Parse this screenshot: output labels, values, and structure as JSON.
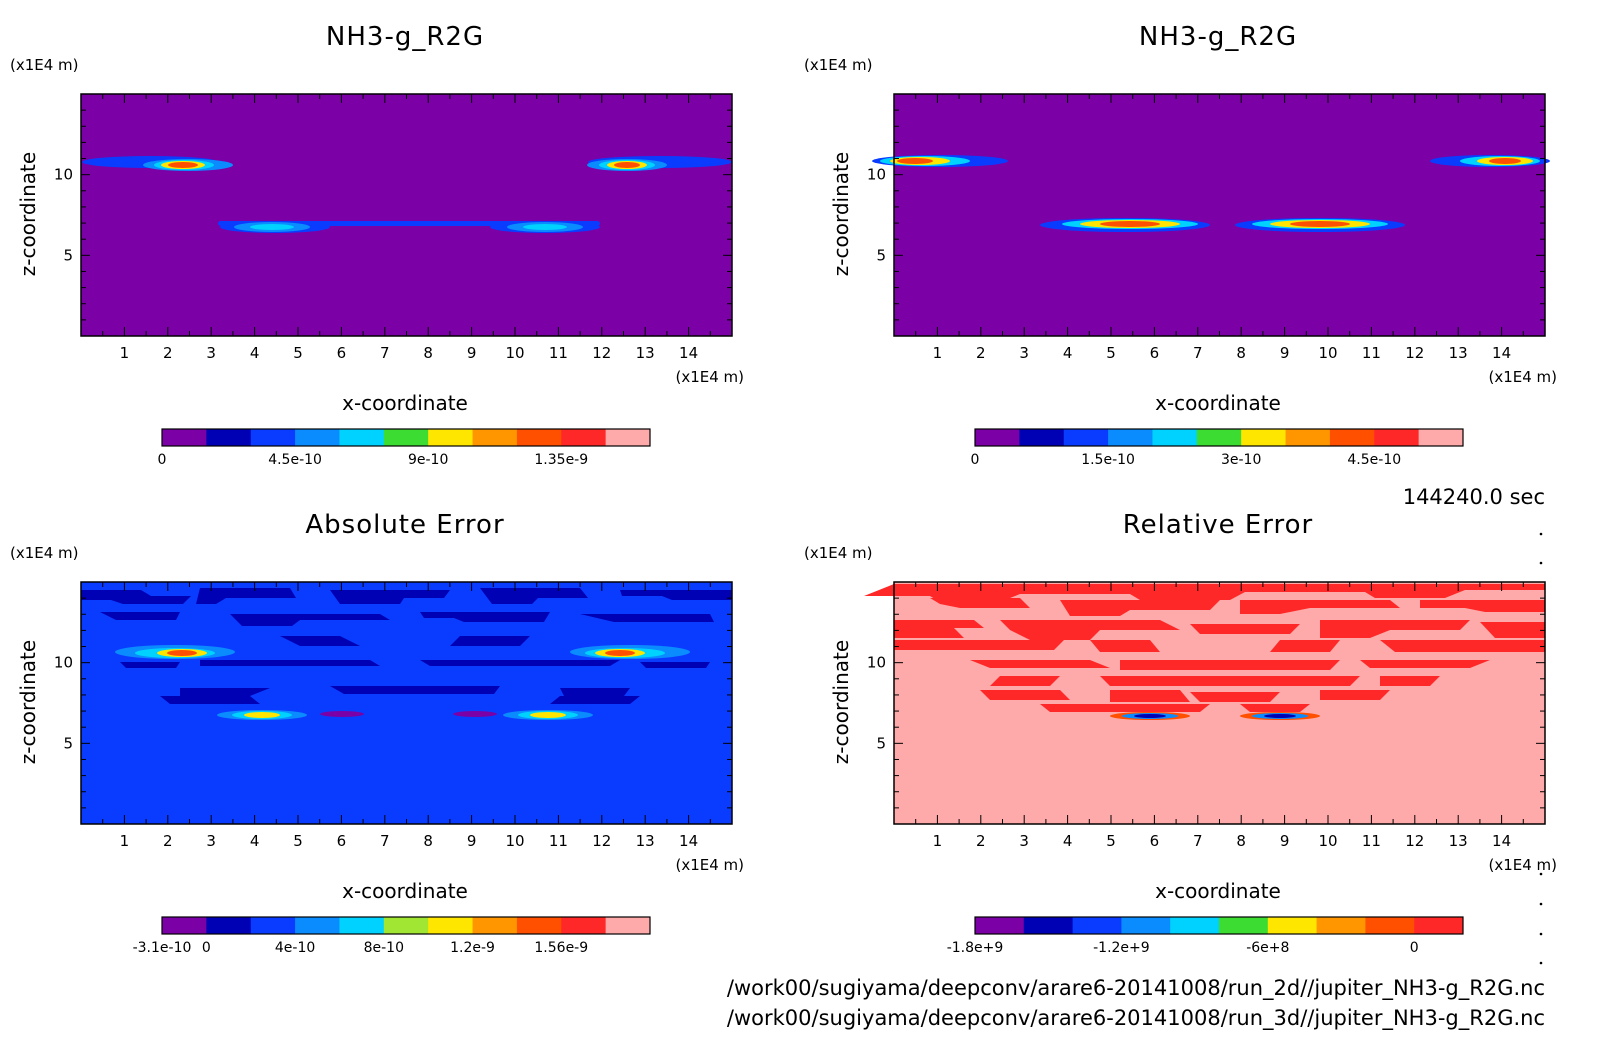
{
  "colors": {
    "purple": "#7b00a6",
    "navy": "#0000b4",
    "blue": "#0a3cff",
    "lightblue": "#0a8cff",
    "cyan": "#00d2ff",
    "green": "#3cdc32",
    "yellow": "#ffe600",
    "orange": "#ff9600",
    "redorange": "#ff5000",
    "red": "#ff2828",
    "pink": "#ffaaaa"
  },
  "time_label": "144240.0 sec",
  "file_paths": [
    "/work00/sugiyama/deepconv/arare6-20141008/run_2d//jupiter_NH3-g_R2G.nc",
    "/work00/sugiyama/deepconv/arare6-20141008/run_3d//jupiter_NH3-g_R2G.nc"
  ],
  "chart_data": [
    {
      "type": "heatmap",
      "title": "NH3-g_R2G",
      "xlabel": "x-coordinate",
      "ylabel": "z-coordinate",
      "x_unit": "(x1E4 m)",
      "y_unit": "(x1E4 m)",
      "xlim": [
        0,
        15
      ],
      "ylim": [
        0,
        15
      ],
      "x_ticks": [
        1,
        2,
        3,
        4,
        5,
        6,
        7,
        8,
        9,
        10,
        11,
        12,
        13,
        14
      ],
      "y_ticks": [
        5,
        10
      ],
      "background": "#7b00a6",
      "features": [
        {
          "x_range": [
            0,
            3.5
          ],
          "z": 10.6,
          "peak_x": 2.5,
          "level": "high"
        },
        {
          "x_range": [
            11.5,
            15
          ],
          "z": 10.6,
          "peak_x": 12.5,
          "level": "high"
        },
        {
          "x_range": [
            3.2,
            12
          ],
          "z": 6.8,
          "peak_x": 4.5,
          "level": "mid"
        },
        {
          "x_range": [
            3.2,
            12
          ],
          "z": 6.8,
          "peak_x": 10.5,
          "level": "mid"
        }
      ],
      "colorbar": {
        "colors": [
          "#7b00a6",
          "#0000b4",
          "#0a3cff",
          "#0a8cff",
          "#00d2ff",
          "#3cdc32",
          "#ffe600",
          "#ff9600",
          "#ff5000",
          "#ff2828",
          "#ffaaaa"
        ],
        "labels": [
          "0",
          "4.5e-10",
          "9e-10",
          "1.35e-9"
        ],
        "label_positions": [
          0,
          3,
          6,
          9
        ]
      }
    },
    {
      "type": "heatmap",
      "title": "NH3-g_R2G",
      "xlabel": "x-coordinate",
      "ylabel": "z-coordinate",
      "x_unit": "(x1E4 m)",
      "y_unit": "(x1E4 m)",
      "xlim": [
        0,
        15
      ],
      "ylim": [
        0,
        15
      ],
      "x_ticks": [
        1,
        2,
        3,
        4,
        5,
        6,
        7,
        8,
        9,
        10,
        11,
        12,
        13,
        14
      ],
      "y_ticks": [
        5,
        10
      ],
      "background": "#7b00a6",
      "features": [
        {
          "x_range": [
            0,
            2.7
          ],
          "z": 10.8,
          "peak_x": 0.8,
          "level": "high"
        },
        {
          "x_range": [
            12.4,
            15
          ],
          "z": 10.8,
          "peak_x": 14.2,
          "level": "high"
        },
        {
          "x_range": [
            3.4,
            7.8
          ],
          "z": 6.9,
          "peak_x": 5.5,
          "level": "high"
        },
        {
          "x_range": [
            7.8,
            11.8
          ],
          "z": 6.9,
          "peak_x": 9.5,
          "level": "high"
        }
      ],
      "colorbar": {
        "colors": [
          "#7b00a6",
          "#0000b4",
          "#0a3cff",
          "#0a8cff",
          "#00d2ff",
          "#3cdc32",
          "#ffe600",
          "#ff9600",
          "#ff5000",
          "#ff2828",
          "#ffaaaa"
        ],
        "labels": [
          "0",
          "1.5e-10",
          "3e-10",
          "4.5e-10"
        ],
        "label_positions": [
          0,
          3,
          6,
          9
        ]
      }
    },
    {
      "type": "heatmap",
      "title": "Absolute Error",
      "xlabel": "x-coordinate",
      "ylabel": "z-coordinate",
      "x_unit": "(x1E4 m)",
      "y_unit": "(x1E4 m)",
      "xlim": [
        0,
        15
      ],
      "ylim": [
        0,
        15
      ],
      "x_ticks": [
        1,
        2,
        3,
        4,
        5,
        6,
        7,
        8,
        9,
        10,
        11,
        12,
        13,
        14
      ],
      "y_ticks": [
        5,
        10
      ],
      "background": "#0a3cff",
      "features": [
        {
          "x_range": [
            0.8,
            3.4
          ],
          "z": 10.5,
          "peak_x": 2.5,
          "level": "high"
        },
        {
          "x_range": [
            11.8,
            14.6
          ],
          "z": 10.5,
          "peak_x": 12.5,
          "level": "high"
        },
        {
          "x_range": [
            3.4,
            5.3
          ],
          "z": 6.6,
          "peak_x": 4.5,
          "level": "mid"
        },
        {
          "x_range": [
            9.8,
            11.9
          ],
          "z": 6.6,
          "peak_x": 10.8,
          "level": "mid"
        }
      ],
      "colorbar": {
        "colors": [
          "#7b00a6",
          "#0000b4",
          "#0a3cff",
          "#0a8cff",
          "#00d2ff",
          "#a0e632",
          "#ffe600",
          "#ff9600",
          "#ff5000",
          "#ff2828",
          "#ffaaaa"
        ],
        "labels": [
          "-3.1e-10",
          "0",
          "4e-10",
          "8e-10",
          "1.2e-9",
          "1.56e-9"
        ],
        "label_positions": [
          0,
          1,
          3,
          5,
          7,
          9
        ]
      }
    },
    {
      "type": "heatmap",
      "title": "Relative Error",
      "xlabel": "x-coordinate",
      "ylabel": "z-coordinate",
      "x_unit": "(x1E4 m)",
      "y_unit": "(x1E4 m)",
      "xlim": [
        0,
        15
      ],
      "ylim": [
        0,
        15
      ],
      "x_ticks": [
        1,
        2,
        3,
        4,
        5,
        6,
        7,
        8,
        9,
        10,
        11,
        12,
        13,
        14
      ],
      "y_ticks": [
        5,
        10
      ],
      "background": "#ffaaaa",
      "features": [
        {
          "x_range": [
            5.4,
            6.8
          ],
          "z": 6.3,
          "peak_x": 6.0,
          "level": "low"
        },
        {
          "x_range": [
            8.3,
            9.8
          ],
          "z": 6.3,
          "peak_x": 9.0,
          "level": "low"
        }
      ],
      "colorbar": {
        "colors": [
          "#7b00a6",
          "#0000b4",
          "#0a3cff",
          "#0a8cff",
          "#00d2ff",
          "#3cdc32",
          "#ffe600",
          "#ff9600",
          "#ff5000",
          "#ff2828"
        ],
        "labels": [
          "-1.8e+9",
          "-1.2e+9",
          "-6e+8",
          "0"
        ],
        "label_positions": [
          0,
          3,
          6,
          9
        ]
      }
    }
  ]
}
